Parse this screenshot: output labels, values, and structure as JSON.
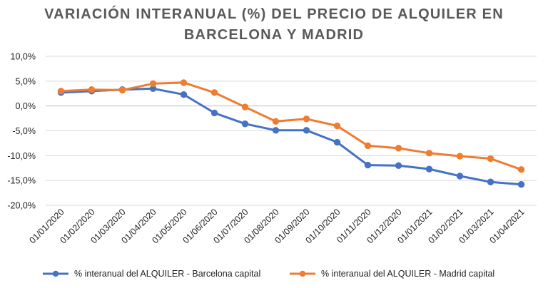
{
  "chart_data": {
    "type": "line",
    "title_lines": [
      "VARIACIÓN INTERANUAL (%) DEL PRECIO DE ALQUILER EN",
      "BARCELONA Y MADRID"
    ],
    "categories": [
      "01/01/2020",
      "01/02/2020",
      "01/03/2020",
      "01/04/2020",
      "01/05/2020",
      "01/06/2020",
      "01/07/2020",
      "01/08/2020",
      "01/09/2020",
      "01/10/2020",
      "01/11/2020",
      "01/12/2020",
      "01/01/2021",
      "01/02/2021",
      "01/03/2021",
      "01/04/2021"
    ],
    "series": [
      {
        "name": "% interanual del ALQUILER - Barcelona capital",
        "color": "#4472C4",
        "values": [
          2.7,
          3.0,
          3.3,
          3.5,
          2.3,
          -1.4,
          -3.6,
          -4.9,
          -4.9,
          -7.3,
          -11.9,
          -12.0,
          -12.7,
          -14.1,
          -15.3,
          -15.8
        ]
      },
      {
        "name": "% interanual del ALQUILER - Madrid capital",
        "color": "#ED7D31",
        "values": [
          3.0,
          3.3,
          3.2,
          4.5,
          4.7,
          2.7,
          -0.2,
          -3.1,
          -2.6,
          -4.0,
          -8.0,
          -8.5,
          -9.5,
          -10.1,
          -10.6,
          -12.8
        ]
      }
    ],
    "yticks": [
      "10,0%",
      "5,0%",
      "0,0%",
      "-5,0%",
      "-10,0%",
      "-15,0%",
      "-20,0%"
    ],
    "ylim": [
      -20,
      10
    ],
    "ystep": 5,
    "grid": true,
    "legend_position": "bottom"
  }
}
